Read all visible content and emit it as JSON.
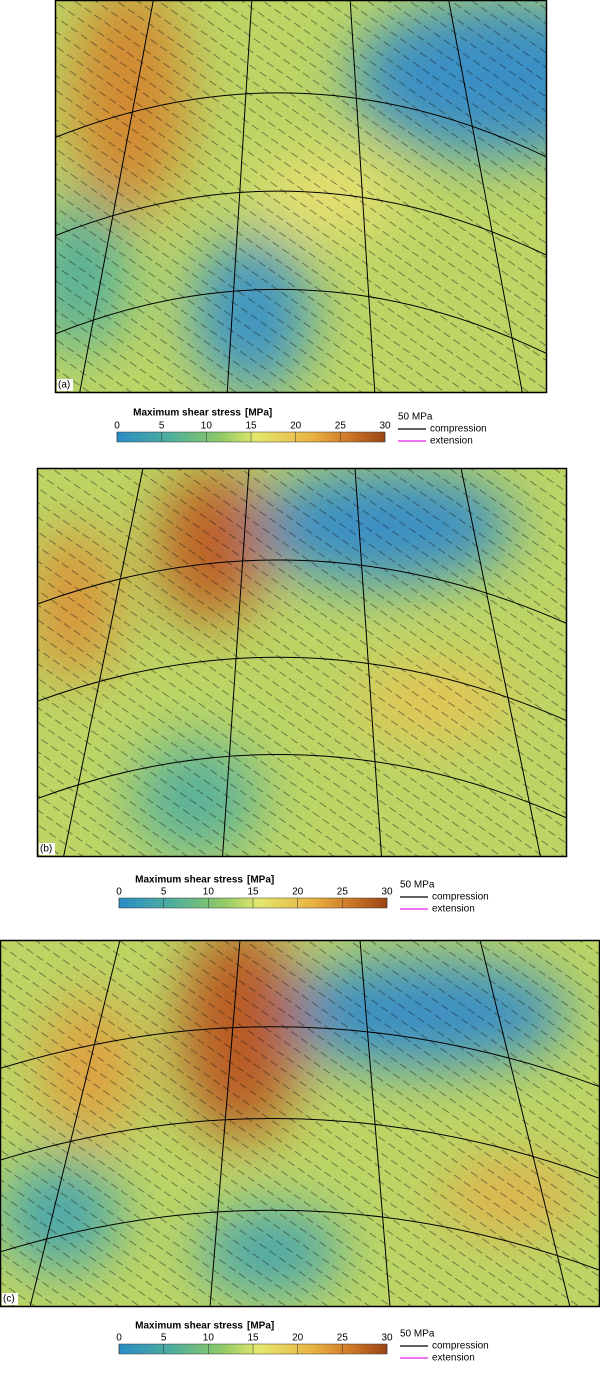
{
  "panels": [
    {
      "label": "(a)",
      "colorbar": {
        "title": "Maximum shear stress",
        "unit": "[MPa]",
        "range": [
          0,
          30
        ],
        "ticks": [
          0,
          5,
          10,
          15,
          20,
          25,
          30
        ]
      },
      "legend": {
        "scale": "50 MPa",
        "items": [
          {
            "label": "compression",
            "color": "#000000"
          },
          {
            "label": "extension",
            "color": "#e020e0"
          }
        ]
      }
    },
    {
      "label": "(b)",
      "colorbar": {
        "title": "Maximum shear stress",
        "unit": "[MPa]",
        "range": [
          0,
          30
        ],
        "ticks": [
          0,
          5,
          10,
          15,
          20,
          25,
          30
        ]
      },
      "legend": {
        "scale": "50 MPa",
        "items": [
          {
            "label": "compression",
            "color": "#000000"
          },
          {
            "label": "extension",
            "color": "#e020e0"
          }
        ]
      }
    },
    {
      "label": "(c)",
      "colorbar": {
        "title": "Maximum shear stress",
        "unit": "[MPa]",
        "range": [
          0,
          30
        ],
        "ticks": [
          0,
          5,
          10,
          15,
          20,
          25,
          30
        ]
      },
      "legend": {
        "scale": "50 MPa",
        "items": [
          {
            "label": "compression",
            "color": "#000000"
          },
          {
            "label": "extension",
            "color": "#e020e0"
          }
        ]
      }
    }
  ]
}
